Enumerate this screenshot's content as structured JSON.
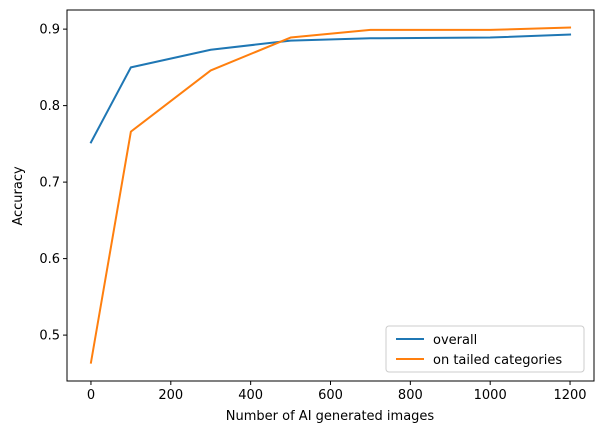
{
  "chart_data": {
    "type": "line",
    "title": "",
    "xlabel": "Number of AI generated images",
    "ylabel": "Accuracy",
    "xlim": [
      -60,
      1260
    ],
    "ylim": [
      0.44,
      0.925
    ],
    "xticks": [
      0,
      200,
      400,
      600,
      800,
      1000,
      1200
    ],
    "yticks": [
      0.5,
      0.6,
      0.7,
      0.8,
      0.9
    ],
    "xtick_labels": [
      "0",
      "200",
      "400",
      "600",
      "800",
      "1000",
      "1200"
    ],
    "ytick_labels": [
      "0.5",
      "0.6",
      "0.7",
      "0.8",
      "0.9"
    ],
    "grid": false,
    "legend_position": "lower-right",
    "x": [
      0,
      100,
      300,
      500,
      700,
      1000,
      1200
    ],
    "series": [
      {
        "name": "overall",
        "color": "#1f77b4",
        "values": [
          0.752,
          0.85,
          0.873,
          0.885,
          0.888,
          0.889,
          0.893
        ]
      },
      {
        "name": "on tailed categories",
        "color": "#ff7f0e",
        "values": [
          0.464,
          0.766,
          0.846,
          0.889,
          0.899,
          0.899,
          0.902
        ]
      }
    ]
  }
}
